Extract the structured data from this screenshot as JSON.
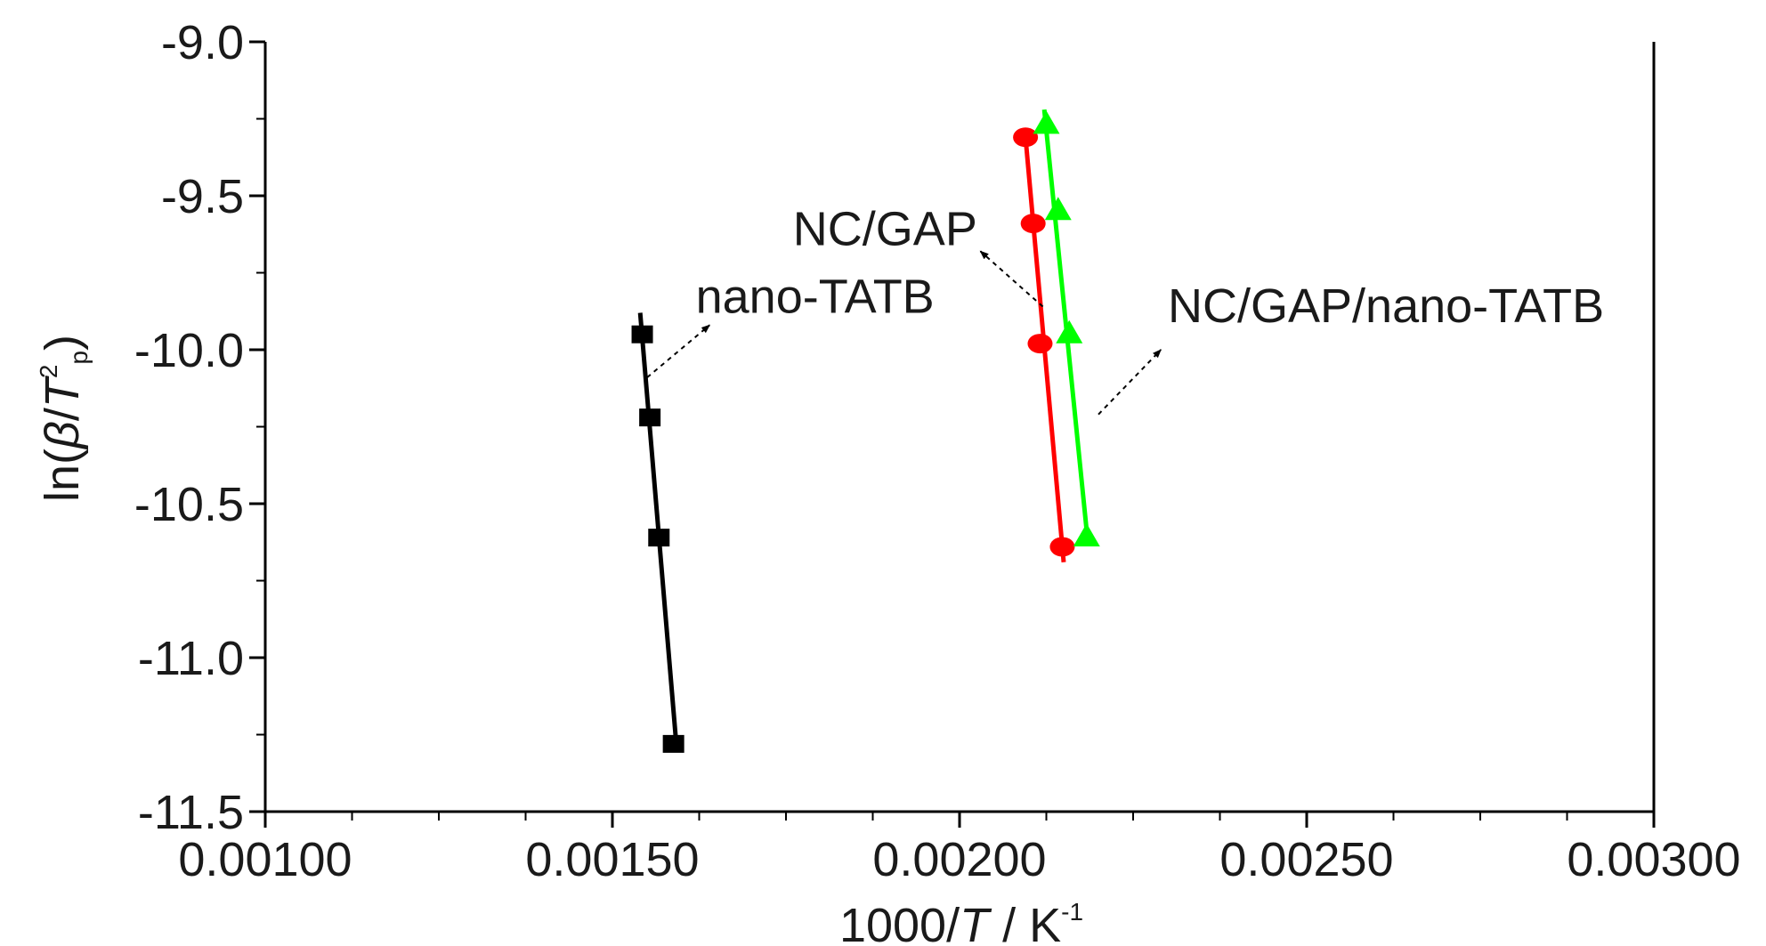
{
  "chart_data": {
    "type": "scatter",
    "title": "",
    "xlabel": {
      "pre": "1000/",
      "italic": "T",
      "post": " / K",
      "sup": "-1"
    },
    "ylabel": {
      "pre": "ln(",
      "beta": "β",
      "slash": "/",
      "italic": "T",
      "sup": "2",
      "sub": "p",
      "post": ")"
    },
    "xlim": [
      0.001,
      0.003
    ],
    "ylim": [
      -11.5,
      -9.0
    ],
    "x_ticks": [
      "0.00100",
      "0.00150",
      "0.00200",
      "0.00250",
      "0.00300"
    ],
    "x_tick_values": [
      0.001,
      0.0015,
      0.002,
      0.0025,
      0.003
    ],
    "y_ticks": [
      "-9.0",
      "-9.5",
      "-10.0",
      "-10.5",
      "-11.0",
      "-11.5"
    ],
    "y_tick_values": [
      -9.0,
      -9.5,
      -10.0,
      -10.5,
      -11.0,
      -11.5
    ],
    "x_minor_step": 0.000125,
    "y_minor_step": 0.25,
    "grid": false,
    "series": [
      {
        "name": "nano-TATB",
        "color": "#000000",
        "marker": "square",
        "x": [
          0.001543,
          0.001554,
          0.001567,
          0.001588
        ],
        "y": [
          -9.95,
          -10.22,
          -10.61,
          -11.28
        ],
        "fit_x": [
          0.00154,
          0.001592
        ],
        "fit_y": [
          -9.88,
          -11.28
        ]
      },
      {
        "name": "NC/GAP",
        "color": "#ff0000",
        "marker": "circle",
        "x": [
          0.002095,
          0.002106,
          0.002116,
          0.002148
        ],
        "y": [
          -9.31,
          -9.59,
          -9.98,
          -10.64
        ],
        "fit_x": [
          0.002095,
          0.00215
        ],
        "fit_y": [
          -9.31,
          -10.69
        ]
      },
      {
        "name": "NC/GAP/nano-TATB",
        "color": "#00ff00",
        "marker": "triangle",
        "x": [
          0.002125,
          0.002142,
          0.002158,
          0.002183
        ],
        "y": [
          -9.27,
          -9.55,
          -9.95,
          -10.61
        ],
        "fit_x": [
          0.002122,
          0.002185
        ],
        "fit_y": [
          -9.22,
          -10.63
        ]
      }
    ],
    "annotations": [
      {
        "text": "nano-TATB",
        "tx": 0.00162,
        "ty": -9.88,
        "from": [
          0.00155,
          -10.09
        ],
        "to": [
          0.00164,
          -9.92
        ]
      },
      {
        "text": "NC/GAP",
        "tx": 0.00176,
        "ty": -9.66,
        "from": [
          0.00212,
          -9.86
        ],
        "to": [
          0.00203,
          -9.68
        ]
      },
      {
        "text": "NC/GAP/nano-TATB",
        "tx": 0.0023,
        "ty": -9.91,
        "from": [
          0.0022,
          -10.21
        ],
        "to": [
          0.00229,
          -10.0
        ]
      }
    ]
  }
}
